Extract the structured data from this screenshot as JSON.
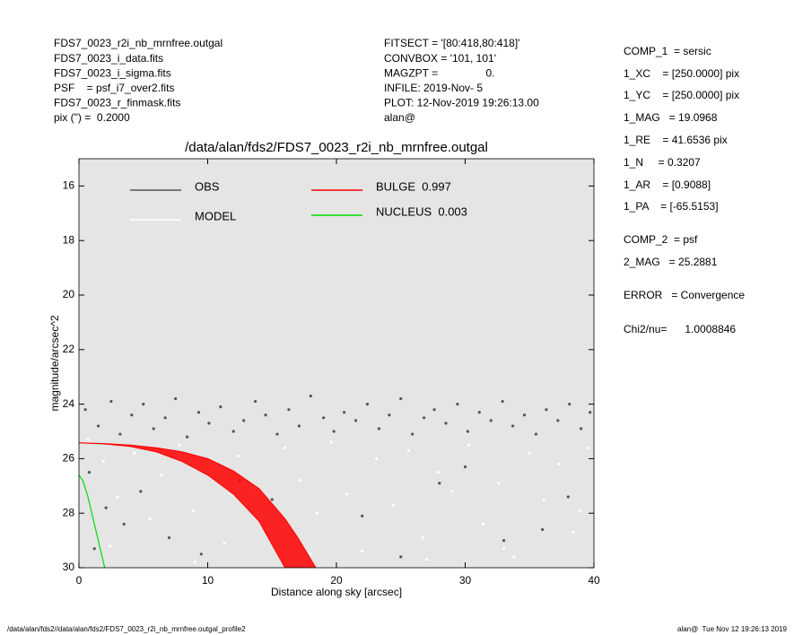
{
  "header": {
    "left": [
      "FDS7_0023_r2i_nb_mrnfree.outgal",
      "FDS7_0023_i_data.fits",
      "FDS7_0023_i_sigma.fits",
      "PSF    = psf_i7_over2.fits",
      "FDS7_0023_r_finmask.fits",
      "pix (\") =  0.2000"
    ],
    "middle": [
      "FITSECT = '[80:418,80:418]'",
      "CONVBOX = '101, 101'",
      "MAGZPT =                0.",
      "INFILE: 2019-Nov- 5",
      "PLOT: 12-Nov-2019 19:26:13.00",
      "alan@"
    ],
    "right": [
      "COMP_1  = sersic",
      "1_XC    = [250.0000] pix",
      "1_YC    = [250.0000] pix",
      "1_MAG   = 19.0968",
      "1_RE    = 41.6536 pix",
      "1_N     = 0.3207",
      "1_AR    = [0.9088]",
      "1_PA    = [-65.5153]",
      "COMP_2  = psf",
      "2_MAG   = 25.2881",
      "ERROR   = Convergence",
      "Chi2/nu=      1.0008846"
    ]
  },
  "footer": {
    "left": "/data/alan/fds2//data/alan/fds2/FDS7_0023_r2i_nb_mrnfree.outgal_profile2",
    "right": "alan@  Tue Nov 12 19:26:13 2019"
  },
  "chart_data": {
    "type": "scatter",
    "title": "/data/alan/fds2/FDS7_0023_r2i_nb_mrnfree.outgal",
    "xlabel": "Distance along sky [arcsec]",
    "ylabel": "magnitude/arcsec^2",
    "xlim": [
      0,
      40
    ],
    "xticks": [
      0,
      10,
      20,
      30,
      40
    ],
    "ylim": [
      30,
      15
    ],
    "yticks": [
      16,
      18,
      20,
      22,
      24,
      26,
      28,
      30
    ],
    "series": [
      {
        "name": "OBS",
        "color": "#555555",
        "mode": "markers",
        "x": [
          0.5,
          1.5,
          2.5,
          3.2,
          4.1,
          5,
          5.8,
          6.7,
          7.5,
          8.4,
          9.3,
          10.1,
          11,
          12,
          12.8,
          13.7,
          14.5,
          15.4,
          16.3,
          17.1,
          18,
          19,
          19.8,
          20.6,
          21.5,
          22.4,
          23.3,
          24.1,
          25,
          25.9,
          26.8,
          27.6,
          28.5,
          29.4,
          30.2,
          31.1,
          32,
          32.9,
          33.7,
          34.6,
          35.5,
          36.3,
          37.2,
          38.1,
          39,
          39.7,
          0.8,
          2.1,
          3.5,
          1.2,
          4.8,
          7,
          9.5,
          12.5,
          15,
          22,
          28,
          33,
          38,
          36,
          30,
          25
        ],
        "values": [
          24.2,
          24.8,
          23.9,
          25.1,
          24.4,
          24.0,
          24.9,
          24.5,
          23.8,
          25.2,
          24.3,
          24.7,
          24.1,
          25.0,
          24.6,
          23.9,
          24.4,
          25.1,
          24.2,
          24.8,
          23.7,
          24.5,
          25.0,
          24.3,
          24.6,
          24.0,
          24.9,
          24.4,
          23.8,
          25.1,
          24.5,
          24.2,
          24.7,
          24.0,
          25.0,
          24.3,
          24.6,
          23.9,
          24.8,
          24.4,
          25.1,
          24.2,
          24.6,
          24.0,
          24.9,
          24.3,
          26.5,
          27.8,
          28.4,
          29.3,
          27.2,
          28.9,
          29.5,
          26.8,
          27.5,
          28.1,
          26.9,
          29.0,
          27.4,
          28.6,
          26.3,
          29.6
        ]
      },
      {
        "name": "MODEL",
        "color": "#ffffff",
        "mode": "markers",
        "x": [
          0.7,
          1.9,
          3,
          4.3,
          5.5,
          6.4,
          7.8,
          8.9,
          10,
          11.3,
          12.4,
          13.5,
          14.8,
          16,
          17.2,
          18.5,
          19.6,
          20.8,
          22,
          23.1,
          24.4,
          25.6,
          26.7,
          27.9,
          29,
          30.3,
          31.4,
          32.6,
          33.8,
          35,
          36.1,
          37.3,
          38.4,
          39.5,
          2.4,
          9,
          18,
          27,
          33,
          38.9
        ],
        "values": [
          25.3,
          26.1,
          27.4,
          25.8,
          28.2,
          26.6,
          25.5,
          27.9,
          26.3,
          29.1,
          25.9,
          27.1,
          28.6,
          25.6,
          26.8,
          28.0,
          25.4,
          27.3,
          29.4,
          26.0,
          27.7,
          25.7,
          28.9,
          26.5,
          27.2,
          25.5,
          28.4,
          26.9,
          29.6,
          25.8,
          27.5,
          26.2,
          28.7,
          25.6,
          29.2,
          29.8,
          29.5,
          29.7,
          29.3,
          27.9
        ]
      },
      {
        "name": "BULGE  0.997",
        "color": "#ff0000",
        "mode": "band",
        "x": [
          0,
          2,
          4,
          6,
          8,
          10,
          12,
          14,
          16,
          17,
          18.4
        ],
        "values": [
          25.42,
          25.45,
          25.5,
          25.6,
          25.75,
          26.0,
          26.45,
          27.1,
          28.2,
          28.9,
          30
        ],
        "values_low": [
          25.42,
          25.46,
          25.55,
          25.75,
          26.1,
          26.6,
          27.3,
          28.3,
          30,
          30.9,
          32.5
        ]
      },
      {
        "name": "NUCLEUS  0.003",
        "color": "#00dd00",
        "mode": "line",
        "x": [
          0,
          0.3,
          0.7,
          1.1,
          1.5,
          2.0
        ],
        "values": [
          26.6,
          26.8,
          27.4,
          28.2,
          29.0,
          30.0
        ]
      }
    ]
  }
}
